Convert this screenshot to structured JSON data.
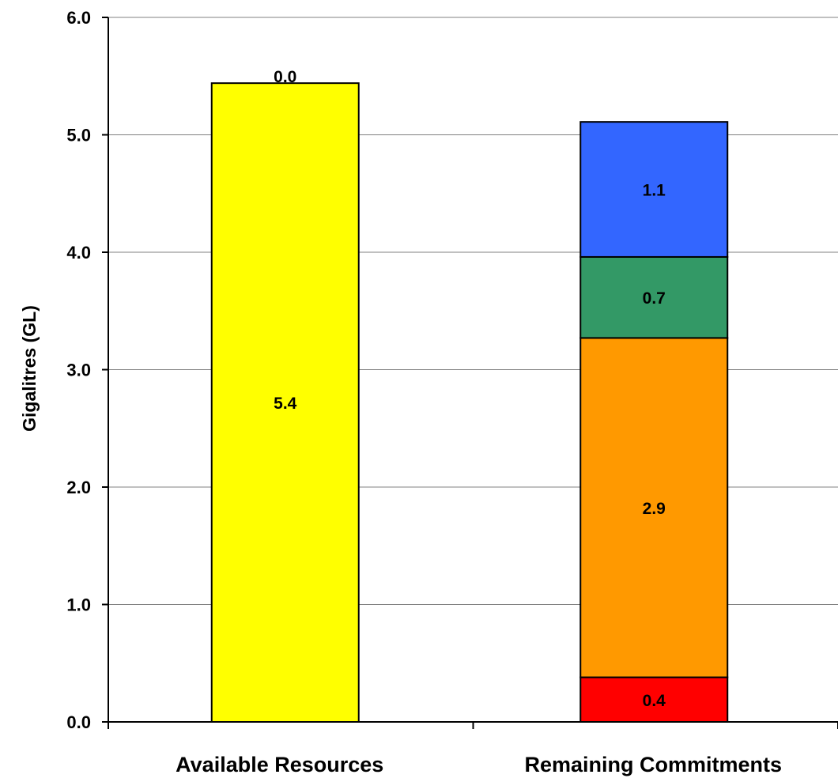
{
  "chart_data": {
    "type": "bar",
    "stacked": true,
    "title": "",
    "xlabel": "",
    "ylabel": "Gigalitres (GL)",
    "ylim": [
      0,
      6
    ],
    "yticks": [
      "0.0",
      "1.0",
      "2.0",
      "3.0",
      "4.0",
      "5.0",
      "6.0"
    ],
    "grid": true,
    "legend": "none",
    "categories": [
      "Available Resources",
      "Remaining Commitments"
    ],
    "bars": [
      {
        "category": "Available Resources",
        "segments": [
          {
            "value": 5.44,
            "label": "5.4",
            "color": "#FFFF00"
          },
          {
            "value": 0.0,
            "label": "0.0",
            "color": "#FFFF00"
          }
        ]
      },
      {
        "category": "Remaining Commitments",
        "segments": [
          {
            "value": 0.38,
            "label": "0.4",
            "color": "#FF0000"
          },
          {
            "value": 2.89,
            "label": "2.9",
            "color": "#FF9900"
          },
          {
            "value": 0.69,
            "label": "0.7",
            "color": "#339966"
          },
          {
            "value": 1.15,
            "label": "1.1",
            "color": "#3366FF"
          }
        ]
      }
    ]
  }
}
